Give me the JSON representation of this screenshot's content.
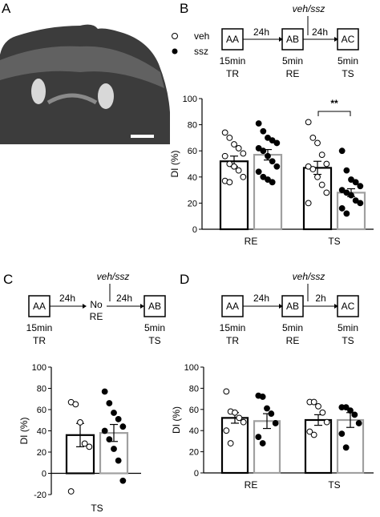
{
  "panels": {
    "a": "A",
    "b": "B",
    "c": "C",
    "d": "D"
  },
  "legend": {
    "veh": "veh",
    "ssz": "ssz"
  },
  "timeline_b": {
    "boxes": [
      "AA",
      "AB",
      "AC"
    ],
    "box_sub1": [
      "15min",
      "5min",
      "5min"
    ],
    "box_sub2": [
      "TR",
      "RE",
      "TS"
    ],
    "intervals": [
      "24h",
      "24h"
    ],
    "injection": "veh/ssz"
  },
  "timeline_c": {
    "boxes": [
      "AA",
      "AB"
    ],
    "box_sub1": [
      "15min",
      "5min"
    ],
    "box_sub2": [
      "TR",
      "TS"
    ],
    "intervals": [
      "24h",
      "24h"
    ],
    "no_re_1": "No",
    "no_re_2": "RE",
    "injection": "veh/ssz"
  },
  "timeline_d": {
    "boxes": [
      "AA",
      "AB",
      "AC"
    ],
    "box_sub1": [
      "15min",
      "5min",
      "5min"
    ],
    "box_sub2": [
      "TR",
      "RE",
      "TS"
    ],
    "intervals": [
      "24h",
      "2h"
    ],
    "injection": "veh/ssz"
  },
  "colors": {
    "veh_bar": "#000000",
    "ssz_bar": "#a0a0a0",
    "tissue": "#3a3a3a"
  },
  "chart_data": [
    {
      "panel": "B",
      "type": "bar",
      "ylabel": "DI (%)",
      "ylim": [
        0,
        100
      ],
      "yticks": [
        0,
        20,
        40,
        60,
        80,
        100
      ],
      "categories": [
        "RE",
        "TS"
      ],
      "series": [
        {
          "name": "veh",
          "values": [
            52,
            47
          ],
          "sem": [
            4,
            5
          ],
          "points": [
            [
              74,
              70,
              65,
              62,
              58,
              56,
              50,
              48,
              45,
              40,
              37,
              36
            ],
            [
              82,
              70,
              66,
              57,
              50,
              48,
              46,
              40,
              34,
              28,
              20
            ]
          ]
        },
        {
          "name": "ssz",
          "values": [
            57,
            28
          ],
          "sem": [
            4,
            3
          ],
          "points": [
            [
              81,
              75,
              70,
              68,
              66,
              62,
              60,
              56,
              52,
              48,
              44,
              40,
              38,
              36
            ],
            [
              60,
              45,
              38,
              36,
              33,
              30,
              28,
              26,
              22,
              20,
              16,
              12
            ]
          ]
        }
      ],
      "significance": {
        "between": "TS",
        "label": "**"
      }
    },
    {
      "panel": "C",
      "type": "bar",
      "ylabel": "DI (%)",
      "ylim": [
        -20,
        100
      ],
      "yticks": [
        -20,
        0,
        20,
        40,
        60,
        80,
        100
      ],
      "categories": [
        "TS"
      ],
      "series": [
        {
          "name": "veh",
          "values": [
            36
          ],
          "sem": [
            11
          ],
          "points": [
            [
              67,
              65,
              48,
              28,
              25,
              -17
            ]
          ]
        },
        {
          "name": "ssz",
          "values": [
            38
          ],
          "sem": [
            8
          ],
          "points": [
            [
              77,
              66,
              57,
              51,
              44,
              40,
              32,
              23,
              12,
              -7
            ]
          ]
        }
      ]
    },
    {
      "panel": "D",
      "type": "bar",
      "ylabel": "DI (%)",
      "ylim": [
        0,
        100
      ],
      "yticks": [
        0,
        20,
        40,
        60,
        80,
        100
      ],
      "categories": [
        "RE",
        "TS"
      ],
      "series": [
        {
          "name": "veh",
          "values": [
            52,
            50
          ],
          "sem": [
            5,
            5
          ],
          "points": [
            [
              77,
              58,
              57,
              52,
              48,
              40,
              28
            ],
            [
              67,
              67,
              63,
              57,
              48,
              39,
              36
            ]
          ]
        },
        {
          "name": "ssz",
          "values": [
            49,
            50
          ],
          "sem": [
            7,
            7
          ],
          "points": [
            [
              73,
              72,
              61,
              56,
              47,
              34,
              28
            ],
            [
              62,
              62,
              59,
              55,
              47,
              37,
              24
            ]
          ]
        }
      ]
    }
  ]
}
